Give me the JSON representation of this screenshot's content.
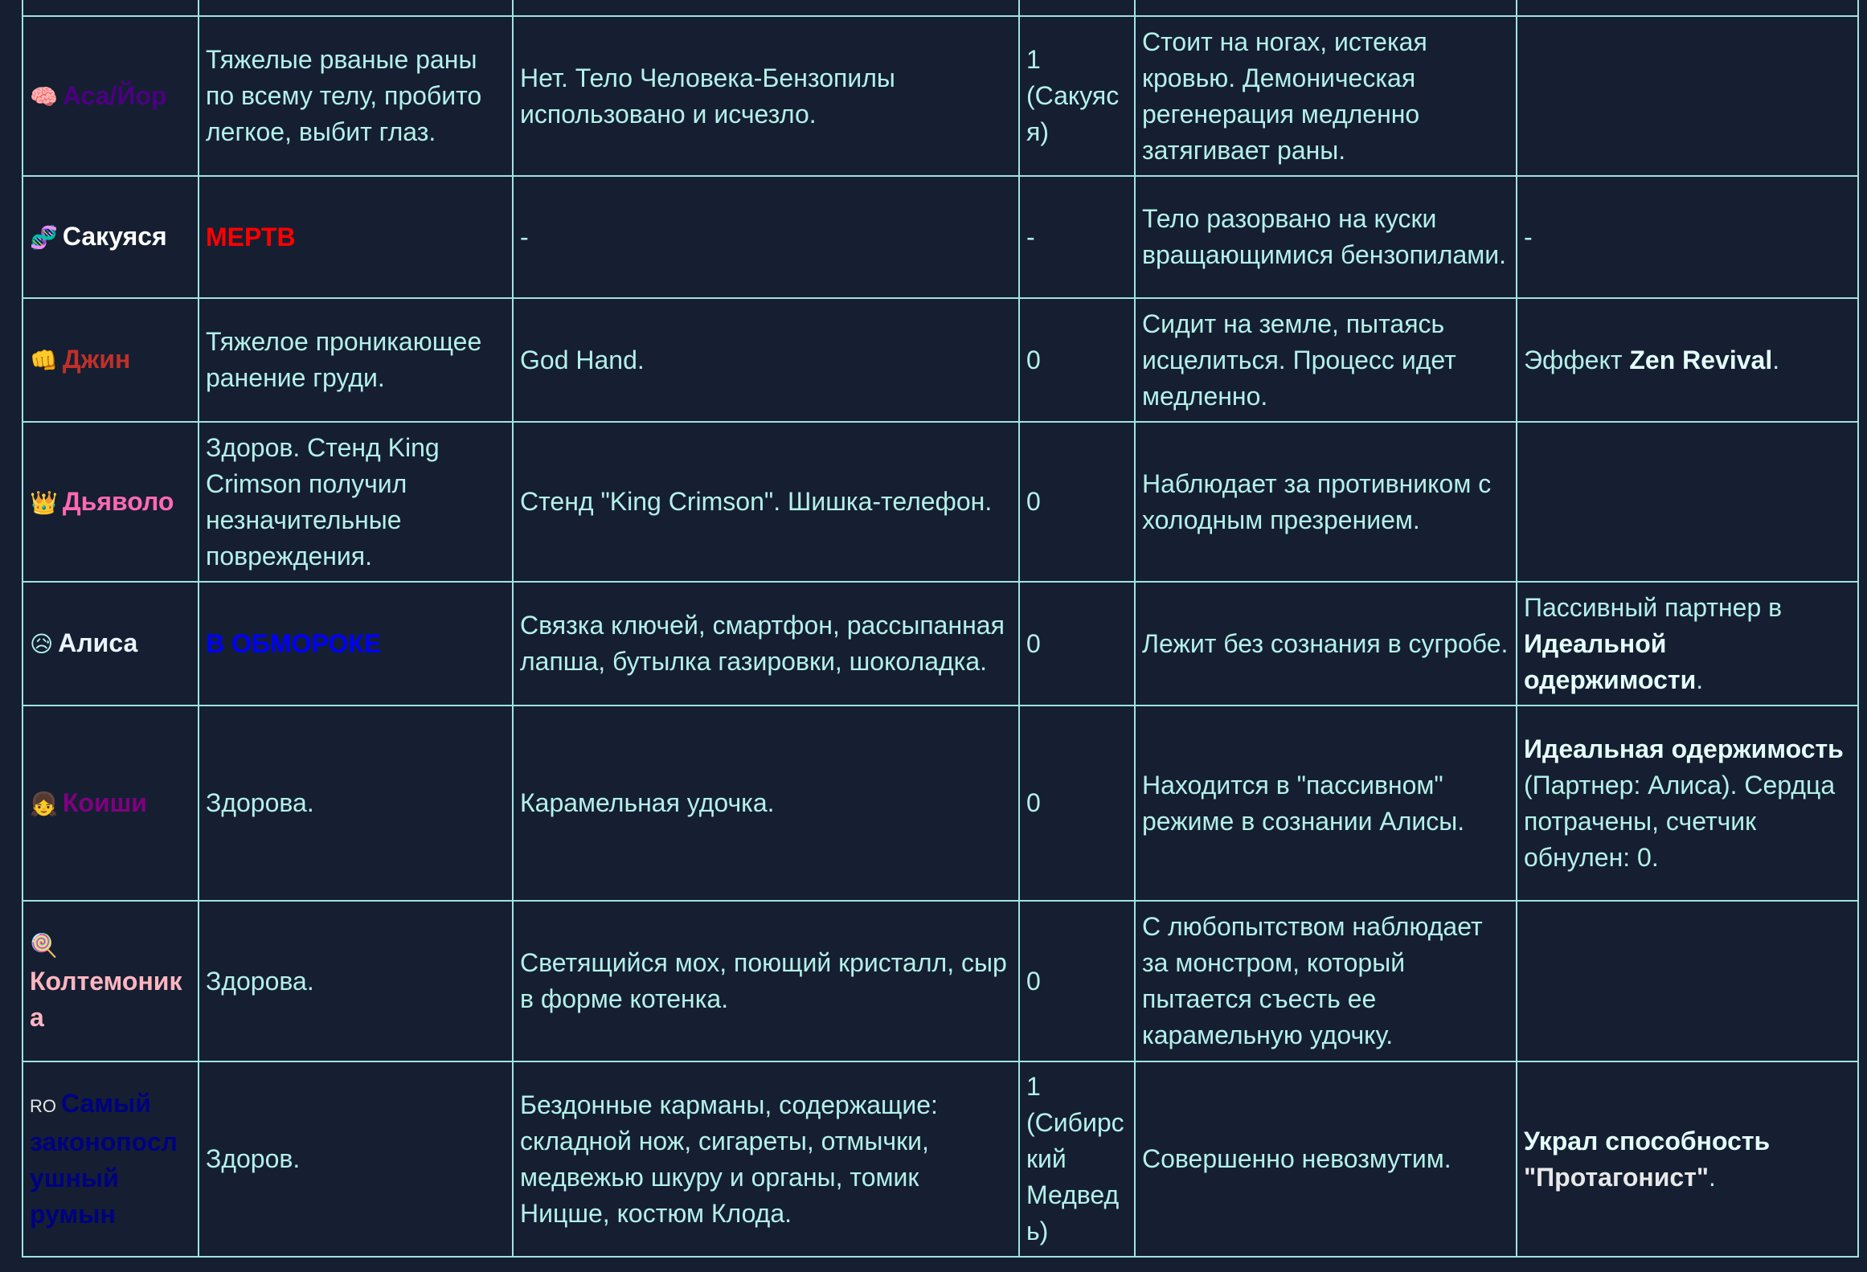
{
  "colors": {
    "background": "#151f31",
    "text": "#b4f0ea",
    "border": "#9fe3e3"
  },
  "rows": [
    {
      "icon": "🧠",
      "icon_name": "brain-icon",
      "name": "Аса/Йор",
      "name_color": "#4b0082",
      "status": "Тяжелые рваные раны по всему телу, пробито легкое, выбит глаз.",
      "items": "Нет. Тело Человека-Бензопилы использовано и исчезло.",
      "count": "1 (Сакуяся)",
      "state": "Стоит на ногах, истекая кровью. Демоническая регенерация медленно затягивает раны.",
      "notes": ""
    },
    {
      "icon": "🧬",
      "icon_name": "dna-icon",
      "name": "Сакуяся",
      "name_color": "#ffffff",
      "status": "МЕРТВ",
      "status_class": "st-red",
      "items": "-",
      "count": "-",
      "state": "Тело разорвано на куски вращающимися бензопилами.",
      "notes": "-"
    },
    {
      "icon": "👊",
      "icon_name": "fist-icon",
      "name": "Джин",
      "name_color": "#c0302a",
      "status": "Тяжелое проникающее ранение груди.",
      "items": "God Hand.",
      "count": "0",
      "state": "Сидит на земле, пытаясь исцелиться. Процесс идет медленно.",
      "notes_pre": "Эффект ",
      "notes_bold": "Zen Revival",
      "notes_post": "."
    },
    {
      "icon": "👑",
      "icon_name": "crown-icon",
      "name": "Дьяволо",
      "name_color": "#ff69b4",
      "status": "Здоров. Стенд King Crimson получил незначительные повреждения.",
      "items": "Стенд \"King Crimson\". Шишка-телефон.",
      "count": "0",
      "state": "Наблюдает за противником с холодным презрением.",
      "notes": ""
    },
    {
      "icon": "😥",
      "icon_name": "sad-face-icon",
      "name": "Алиса",
      "name_color": "#e8f4ff",
      "status": "В ОБМОРОКЕ",
      "status_class": "st-blue",
      "items": "Связка ключей, смартфон, рассыпанная лапша, бутылка газировки, шоколадка.",
      "count": "0",
      "state": "Лежит без сознания в сугробе.",
      "notes_pre": "Пассивный партнер в ",
      "notes_bold": "Идеальной одержимости",
      "notes_post": "."
    },
    {
      "icon": "👧",
      "icon_name": "girl-icon",
      "name": "Коиши",
      "name_color": "#800080",
      "status": "Здорова.",
      "items": "Карамельная удочка.",
      "count": "0",
      "state": "Находится в \"пассивном\" режиме в сознании Алисы.",
      "notes_pre": "",
      "notes_bold": "Идеальная одержимость",
      "notes_post": " (Партнер: Алиса). Сердца потрачены, счетчик обнулен: 0."
    },
    {
      "icon": "🍭",
      "icon_name": "lollipop-icon",
      "name": "Колтемоника",
      "name_color": "#ffb6c1",
      "icon_block": true,
      "status": "Здорова.",
      "items": "Светящийся мох, поющий кристалл, сыр в форме котенка.",
      "count": "0",
      "state": "С любопытством наблюдает за монстром, который пытается съесть ее карамельную удочку.",
      "notes": ""
    },
    {
      "icon": "RO",
      "icon_name": "romania-flag-icon",
      "flag": true,
      "name": "Самый законопослушный румын",
      "name_color": "#000080",
      "status": "Здоров.",
      "items": "Бездонные карманы, содержащие: складной нож, сигареты, отмычки, медвежью шкуру и органы, томик Ницше, костюм Клода.",
      "count": "1 (Сибирский Медведь)",
      "state": "Совершенно невозмутим.",
      "notes_pre": "",
      "notes_bold": "Украл способность",
      "notes_post": " ",
      "notes_quote": "\"Протагонист\"",
      "notes_end": "."
    }
  ]
}
